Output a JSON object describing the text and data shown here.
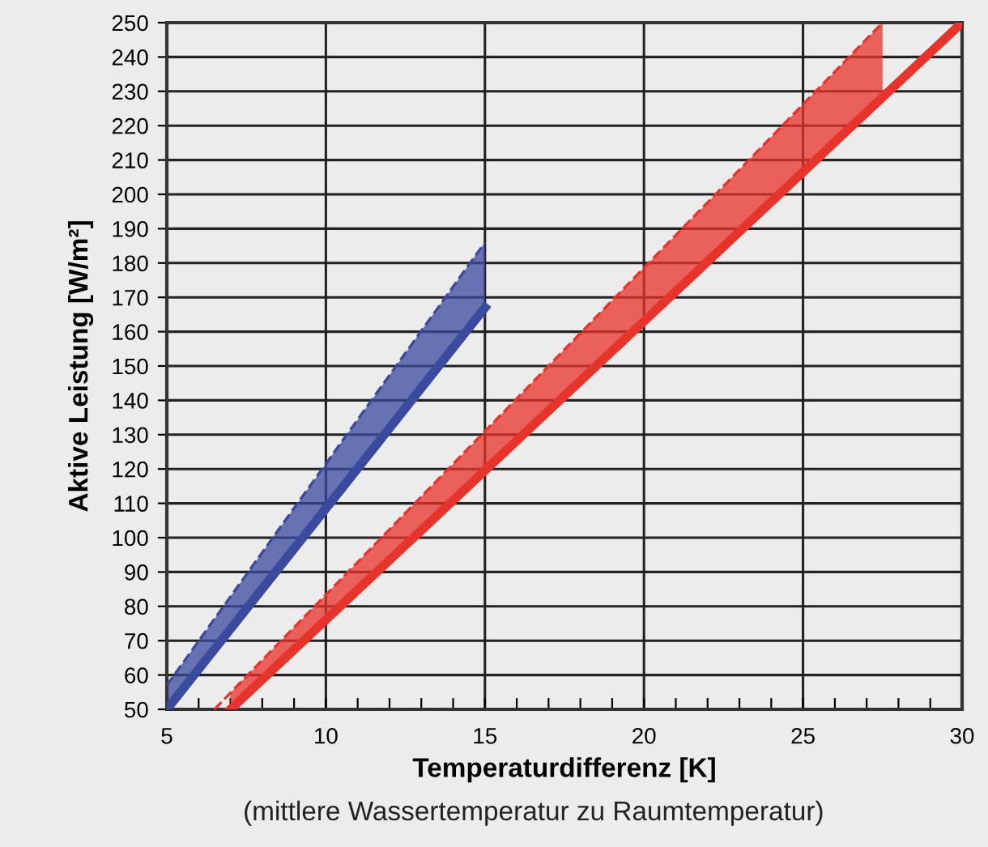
{
  "chart_data": {
    "type": "line",
    "xlabel": "Temperaturdifferenz [K]",
    "ylabel": "Aktive Leistung [W/m²]",
    "annotations": [
      "(mittlere Wassertemperatur zu Raumtemperatur)"
    ],
    "series": [
      {
        "color": "#3a4a9e",
        "x": [
          5,
          15
        ],
        "values": [
          50,
          167
        ]
      },
      {
        "color": "#3a4a9e",
        "x": [
          5,
          15
        ],
        "values": [
          57,
          186
        ],
        "lower": [
          50,
          167
        ],
        "upper": [
          57,
          186
        ],
        "line_style": "dashed"
      },
      {
        "color": "#e8332a",
        "x": [
          7,
          30
        ],
        "values": [
          50,
          250
        ]
      },
      {
        "color": "#e8332a",
        "x": [
          6.5,
          7,
          27.5
        ],
        "values": [
          50,
          54.8,
          250
        ],
        "lower": [
          null,
          50,
          228.3
        ],
        "upper": [
          null,
          54.8,
          250
        ],
        "line_style": "dashed"
      }
    ],
    "xlim": [
      5,
      30
    ],
    "ylim": [
      50,
      250
    ],
    "xticks": [
      5,
      {
        "value": 6,
        "label": null
      },
      {
        "value": 7,
        "label": null
      },
      {
        "value": 8,
        "label": null
      },
      {
        "value": 9,
        "label": null
      },
      10,
      {
        "value": 11,
        "label": null
      },
      {
        "value": 12,
        "label": null
      },
      {
        "value": 13,
        "label": null
      },
      {
        "value": 14,
        "label": null
      },
      15,
      {
        "value": 16,
        "label": null
      },
      {
        "value": 17,
        "label": null
      },
      {
        "value": 18,
        "label": null
      },
      {
        "value": 19,
        "label": null
      },
      20,
      {
        "value": 21,
        "label": null
      },
      {
        "value": 22,
        "label": null
      },
      {
        "value": 23,
        "label": null
      },
      {
        "value": 24,
        "label": null
      },
      25,
      {
        "value": 26,
        "label": null
      },
      {
        "value": 27,
        "label": null
      },
      {
        "value": 28,
        "label": null
      },
      {
        "value": 29,
        "label": null
      },
      30
    ],
    "yticks": [
      50,
      60,
      70,
      80,
      90,
      100,
      110,
      120,
      130,
      140,
      150,
      160,
      170,
      180,
      190,
      200,
      210,
      220,
      230,
      240,
      250
    ],
    "grid": true,
    "legend": false
  }
}
